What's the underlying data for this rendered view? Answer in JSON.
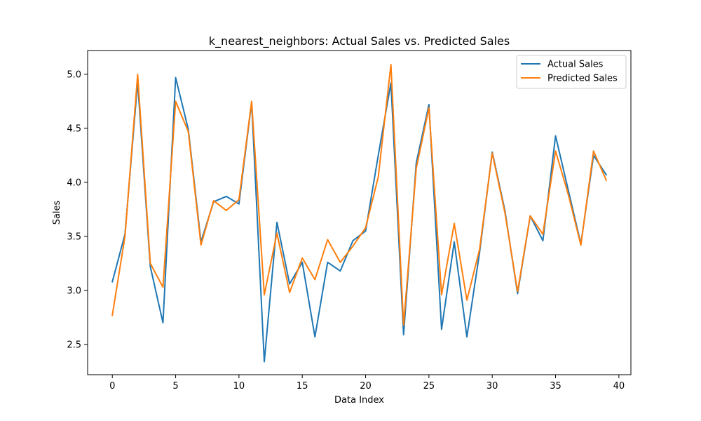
{
  "chart_data": {
    "type": "line",
    "title": "k_nearest_neighbors: Actual Sales vs. Predicted Sales",
    "xlabel": "Data Index",
    "ylabel": "Sales",
    "xlim": [
      -1.95,
      40.95
    ],
    "ylim": [
      2.22,
      5.22
    ],
    "xticks": [
      0,
      5,
      10,
      15,
      20,
      25,
      30,
      35,
      40
    ],
    "yticks": [
      2.5,
      3.0,
      3.5,
      4.0,
      4.5,
      5.0
    ],
    "ytick_labels": [
      "2.5",
      "3.0",
      "3.5",
      "4.0",
      "4.5",
      "5.0"
    ],
    "grid": false,
    "legend_position": "top-right",
    "x": [
      0,
      1,
      2,
      3,
      4,
      5,
      6,
      7,
      8,
      9,
      10,
      11,
      12,
      13,
      14,
      15,
      16,
      17,
      18,
      19,
      20,
      21,
      22,
      23,
      24,
      25,
      26,
      27,
      28,
      29,
      30,
      31,
      32,
      33,
      34,
      35,
      36,
      37,
      38,
      39
    ],
    "series": [
      {
        "name": "Actual Sales",
        "color": "#1f77b4",
        "values": [
          3.08,
          3.52,
          4.93,
          3.22,
          2.7,
          4.97,
          4.49,
          3.45,
          3.82,
          3.87,
          3.8,
          4.74,
          2.34,
          3.63,
          3.06,
          3.26,
          2.57,
          3.26,
          3.18,
          3.46,
          3.55,
          4.25,
          4.92,
          2.59,
          4.18,
          4.72,
          2.64,
          3.45,
          2.57,
          3.35,
          4.28,
          3.74,
          2.97,
          3.69,
          3.46,
          4.43,
          3.93,
          3.43,
          4.25,
          4.07
        ]
      },
      {
        "name": "Predicted Sales",
        "color": "#ff7f0e",
        "values": [
          2.77,
          3.5,
          5.0,
          3.25,
          3.03,
          4.75,
          4.47,
          3.42,
          3.83,
          3.74,
          3.84,
          4.75,
          2.96,
          3.53,
          2.98,
          3.3,
          3.1,
          3.47,
          3.26,
          3.41,
          3.58,
          4.05,
          5.09,
          2.68,
          4.13,
          4.69,
          2.96,
          3.62,
          2.91,
          3.38,
          4.27,
          3.72,
          2.99,
          3.69,
          3.52,
          4.29,
          3.89,
          3.42,
          4.29,
          4.02
        ]
      }
    ]
  }
}
